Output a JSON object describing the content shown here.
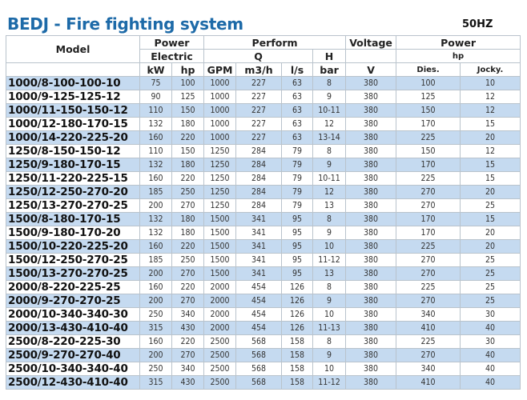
{
  "title": "BEDJ - Fire fighting system",
  "frequency": "50HZ",
  "header": {
    "model": "Model",
    "power_electric_1": "Power",
    "power_electric_2": "Electric",
    "perform": "Perform",
    "q": "Q",
    "h": "H",
    "voltage": "Voltage",
    "power": "Power",
    "hp_group": "hp",
    "units": [
      "kW",
      "hp",
      "GPM",
      "m3/h",
      "l/s",
      "bar",
      "V",
      "Dies.",
      "Jocky."
    ]
  },
  "highlight_color": "#c5daf0",
  "title_color": "#1d6aa8",
  "rows": [
    [
      "1000/8-100-100-10",
      "75",
      "100",
      "1000",
      "227",
      "63",
      "8",
      "380",
      "100",
      "10"
    ],
    [
      "1000/9-125-125-12",
      "90",
      "125",
      "1000",
      "227",
      "63",
      "9",
      "380",
      "125",
      "12"
    ],
    [
      "1000/11-150-150-12",
      "110",
      "150",
      "1000",
      "227",
      "63",
      "10-11",
      "380",
      "150",
      "12"
    ],
    [
      "1000/12-180-170-15",
      "132",
      "180",
      "1000",
      "227",
      "63",
      "12",
      "380",
      "170",
      "15"
    ],
    [
      "1000/14-220-225-20",
      "160",
      "220",
      "1000",
      "227",
      "63",
      "13-14",
      "380",
      "225",
      "20"
    ],
    [
      "1250/8-150-150-12",
      "110",
      "150",
      "1250",
      "284",
      "79",
      "8",
      "380",
      "150",
      "12"
    ],
    [
      "1250/9-180-170-15",
      "132",
      "180",
      "1250",
      "284",
      "79",
      "9",
      "380",
      "170",
      "15"
    ],
    [
      "1250/11-220-225-15",
      "160",
      "220",
      "1250",
      "284",
      "79",
      "10-11",
      "380",
      "225",
      "15"
    ],
    [
      "1250/12-250-270-20",
      "185",
      "250",
      "1250",
      "284",
      "79",
      "12",
      "380",
      "270",
      "20"
    ],
    [
      "1250/13-270-270-25",
      "200",
      "270",
      "1250",
      "284",
      "79",
      "13",
      "380",
      "270",
      "25"
    ],
    [
      "1500/8-180-170-15",
      "132",
      "180",
      "1500",
      "341",
      "95",
      "8",
      "380",
      "170",
      "15"
    ],
    [
      "1500/9-180-170-20",
      "132",
      "180",
      "1500",
      "341",
      "95",
      "9",
      "380",
      "170",
      "20"
    ],
    [
      "1500/10-220-225-20",
      "160",
      "220",
      "1500",
      "341",
      "95",
      "10",
      "380",
      "225",
      "20"
    ],
    [
      "1500/12-250-270-25",
      "185",
      "250",
      "1500",
      "341",
      "95",
      "11-12",
      "380",
      "270",
      "25"
    ],
    [
      "1500/13-270-270-25",
      "200",
      "270",
      "1500",
      "341",
      "95",
      "13",
      "380",
      "270",
      "25"
    ],
    [
      "2000/8-220-225-25",
      "160",
      "220",
      "2000",
      "454",
      "126",
      "8",
      "380",
      "225",
      "25"
    ],
    [
      "2000/9-270-270-25",
      "200",
      "270",
      "2000",
      "454",
      "126",
      "9",
      "380",
      "270",
      "25"
    ],
    [
      "2000/10-340-340-30",
      "250",
      "340",
      "2000",
      "454",
      "126",
      "10",
      "380",
      "340",
      "30"
    ],
    [
      "2000/13-430-410-40",
      "315",
      "430",
      "2000",
      "454",
      "126",
      "11-13",
      "380",
      "410",
      "40"
    ],
    [
      "2500/8-220-225-30",
      "160",
      "220",
      "2500",
      "568",
      "158",
      "8",
      "380",
      "225",
      "30"
    ],
    [
      "2500/9-270-270-40",
      "200",
      "270",
      "2500",
      "568",
      "158",
      "9",
      "380",
      "270",
      "40"
    ],
    [
      "2500/10-340-340-40",
      "250",
      "340",
      "2500",
      "568",
      "158",
      "10",
      "380",
      "340",
      "40"
    ],
    [
      "2500/12-430-410-40",
      "315",
      "430",
      "2500",
      "568",
      "158",
      "11-12",
      "380",
      "410",
      "40"
    ]
  ]
}
